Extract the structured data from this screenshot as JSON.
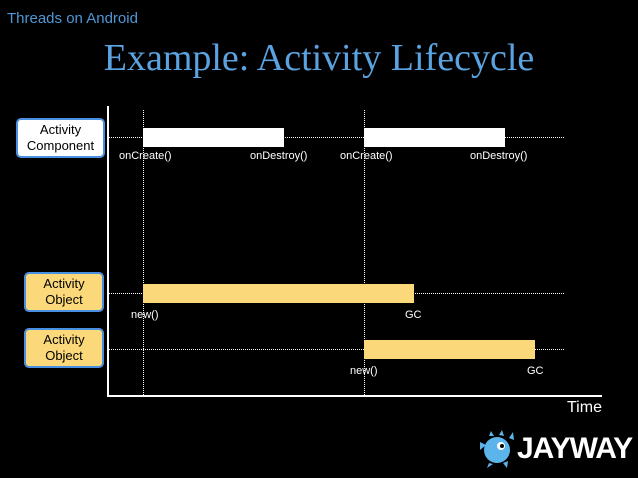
{
  "header": {
    "subtitle": "Threads on Android",
    "title": "Example: Activity Lifecycle"
  },
  "rows": {
    "component": {
      "label_line1": "Activity",
      "label_line2": "Component"
    },
    "object1": {
      "label_line1": "Activity",
      "label_line2": "Object"
    },
    "object2": {
      "label_line1": "Activity",
      "label_line2": "Object"
    }
  },
  "events": {
    "component_create_1": "onCreate()",
    "component_destroy_1": "onDestroy()",
    "component_create_2": "onCreate()",
    "component_destroy_2": "onDestroy()",
    "object1_new": "new()",
    "object1_gc": "GC",
    "object2_new": "new()",
    "object2_gc": "GC"
  },
  "axis": {
    "x_label": "Time"
  },
  "logo": {
    "brand": "JAYWAY"
  },
  "colors": {
    "accent": "#5ba3e0",
    "object_bar": "#fbd97a",
    "component_bar": "#ffffff",
    "box_border": "#4a90e2"
  }
}
